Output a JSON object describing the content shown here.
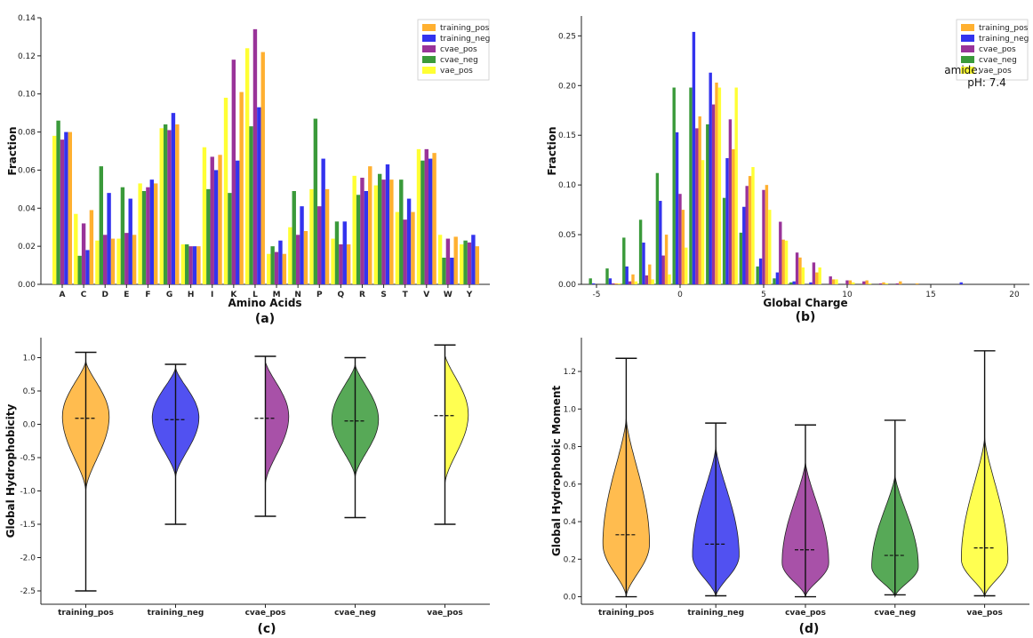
{
  "chart_data": [
    {
      "panel": "(a)",
      "type": "bar",
      "xlabel": "Amino Acids",
      "ylabel": "Fraction",
      "ylim": [
        0,
        0.14
      ],
      "yticks": [
        "0.00",
        "0.02",
        "0.04",
        "0.06",
        "0.08",
        "0.10",
        "0.12",
        "0.14"
      ],
      "legend_position": "top-right",
      "categories": [
        "A",
        "C",
        "D",
        "E",
        "F",
        "G",
        "H",
        "I",
        "K",
        "L",
        "M",
        "N",
        "P",
        "Q",
        "R",
        "S",
        "T",
        "V",
        "W",
        "Y"
      ],
      "series": [
        {
          "name": "vae_pos",
          "color": "#ffff33",
          "values": [
            0.078,
            0.037,
            0.023,
            0.024,
            0.053,
            0.082,
            0.021,
            0.072,
            0.098,
            0.124,
            0.016,
            0.03,
            0.05,
            0.024,
            0.057,
            0.052,
            0.038,
            0.071,
            0.026,
            0.021
          ]
        },
        {
          "name": "cvae_neg",
          "color": "#3a9a3a",
          "values": [
            0.086,
            0.015,
            0.062,
            0.051,
            0.049,
            0.084,
            0.021,
            0.05,
            0.048,
            0.083,
            0.02,
            0.049,
            0.087,
            0.033,
            0.047,
            0.058,
            0.055,
            0.065,
            0.014,
            0.023
          ]
        },
        {
          "name": "cvae_pos",
          "color": "#993399",
          "values": [
            0.076,
            0.032,
            0.026,
            0.027,
            0.051,
            0.081,
            0.02,
            0.067,
            0.118,
            0.134,
            0.017,
            0.026,
            0.041,
            0.021,
            0.056,
            0.055,
            0.034,
            0.071,
            0.024,
            0.022
          ]
        },
        {
          "name": "training_neg",
          "color": "#3333ee",
          "values": [
            0.08,
            0.018,
            0.048,
            0.045,
            0.055,
            0.09,
            0.02,
            0.06,
            0.065,
            0.093,
            0.023,
            0.041,
            0.066,
            0.033,
            0.049,
            0.063,
            0.045,
            0.066,
            0.014,
            0.026
          ]
        },
        {
          "name": "training_pos",
          "color": "#ffb030",
          "values": [
            0.08,
            0.039,
            0.024,
            0.026,
            0.053,
            0.084,
            0.02,
            0.068,
            0.101,
            0.122,
            0.016,
            0.028,
            0.05,
            0.021,
            0.062,
            0.055,
            0.038,
            0.069,
            0.025,
            0.02
          ]
        }
      ],
      "legend_order": [
        "training_pos",
        "training_neg",
        "cvae_pos",
        "cvae_neg",
        "vae_pos"
      ]
    },
    {
      "panel": "(b)",
      "type": "bar",
      "xlabel": "Global Charge",
      "ylabel": "Fraction",
      "xlim": [
        -6,
        21
      ],
      "ylim": [
        0,
        0.27
      ],
      "xticks": [
        "-5",
        "0",
        "5",
        "10",
        "15",
        "20"
      ],
      "yticks": [
        "0.00",
        "0.05",
        "0.10",
        "0.15",
        "0.20",
        "0.25"
      ],
      "legend_position": "top-right",
      "annotation": [
        "amide:",
        "pH:  7.4"
      ],
      "bin_centers": [
        -5,
        -4,
        -3,
        -2,
        -1,
        0,
        1,
        2,
        3,
        4,
        5,
        6,
        7,
        8,
        9,
        10,
        11,
        12,
        13,
        14,
        15,
        16,
        17
      ],
      "series": [
        {
          "name": "cvae_neg",
          "color": "#3a9a3a",
          "values": [
            0.006,
            0.016,
            0.047,
            0.065,
            0.112,
            0.198,
            0.198,
            0.161,
            0.087,
            0.052,
            0.018,
            0.006,
            0.002,
            0,
            0,
            0,
            0,
            0,
            0,
            0,
            0,
            0,
            0
          ]
        },
        {
          "name": "training_neg",
          "color": "#3333ee",
          "values": [
            0.001,
            0.006,
            0.018,
            0.042,
            0.084,
            0.153,
            0.254,
            0.213,
            0.127,
            0.078,
            0.026,
            0.012,
            0.003,
            0.002,
            0,
            0,
            0,
            0,
            0,
            0,
            0,
            0,
            0.002
          ]
        },
        {
          "name": "cvae_pos",
          "color": "#993399",
          "values": [
            0,
            0.001,
            0.003,
            0.009,
            0.029,
            0.091,
            0.157,
            0.181,
            0.166,
            0.099,
            0.095,
            0.063,
            0.032,
            0.022,
            0.008,
            0.004,
            0.003,
            0.001,
            0.001,
            0,
            0,
            0,
            0
          ]
        },
        {
          "name": "training_pos",
          "color": "#ffb030",
          "values": [
            0,
            0.001,
            0.01,
            0.02,
            0.05,
            0.075,
            0.169,
            0.203,
            0.136,
            0.109,
            0.1,
            0.045,
            0.027,
            0.012,
            0.005,
            0.004,
            0.004,
            0.002,
            0.003,
            0.001,
            0,
            0,
            0
          ]
        },
        {
          "name": "vae_pos",
          "color": "#ffff33",
          "values": [
            0,
            0.001,
            0.003,
            0.005,
            0.01,
            0.037,
            0.125,
            0.198,
            0.198,
            0.118,
            0.075,
            0.044,
            0.017,
            0.017,
            0.005,
            0.002,
            0.001,
            0.001,
            0,
            0,
            0,
            0,
            0
          ]
        }
      ],
      "legend_order": [
        "training_pos",
        "training_neg",
        "cvae_pos",
        "cvae_neg",
        "vae_pos"
      ]
    },
    {
      "panel": "(c)",
      "type": "violin",
      "ylabel": "Global Hydrophobicity",
      "ylim": [
        -2.7,
        1.3
      ],
      "yticks": [
        -2.5,
        -2.0,
        -1.5,
        -1.0,
        -0.5,
        0.0,
        0.5,
        1.0
      ],
      "categories": [
        "training_pos",
        "training_neg",
        "cvae_pos",
        "cvae_neg",
        "vae_pos"
      ],
      "series": [
        {
          "name": "training_pos",
          "color": "#ffb030",
          "min": -2.5,
          "max": 1.08,
          "mean": 0.09,
          "peak": 0.12,
          "top": 0.95,
          "bottom": -1.0
        },
        {
          "name": "training_neg",
          "color": "#3333ee",
          "min": -1.5,
          "max": 0.9,
          "mean": 0.07,
          "peak": 0.1,
          "top": 0.85,
          "bottom": -0.8
        },
        {
          "name": "cvae_pos",
          "color": "#993399",
          "min": -1.38,
          "max": 1.02,
          "mean": 0.09,
          "peak": 0.12,
          "top": 0.95,
          "bottom": -0.9
        },
        {
          "name": "cvae_neg",
          "color": "#3a9a3a",
          "min": -1.4,
          "max": 1.0,
          "mean": 0.05,
          "peak": 0.07,
          "top": 0.9,
          "bottom": -0.8
        },
        {
          "name": "vae_pos",
          "color": "#ffff33",
          "min": -1.5,
          "max": 1.19,
          "mean": 0.13,
          "peak": 0.15,
          "top": 1.05,
          "bottom": -0.9
        }
      ]
    },
    {
      "panel": "(d)",
      "type": "violin",
      "ylabel": "Global Hydrophobic Moment",
      "ylim": [
        -0.04,
        1.38
      ],
      "yticks": [
        0.0,
        0.2,
        0.4,
        0.6,
        0.8,
        1.0,
        1.2
      ],
      "categories": [
        "training_pos",
        "training_neg",
        "cvae_pos",
        "cvae_neg",
        "vae_pos"
      ],
      "series": [
        {
          "name": "training_pos",
          "color": "#ffb030",
          "min": 0.0,
          "max": 1.27,
          "mean": 0.33,
          "peak": 0.28,
          "top": 0.95,
          "bottom": 0.0
        },
        {
          "name": "training_neg",
          "color": "#3333ee",
          "min": 0.005,
          "max": 0.925,
          "mean": 0.28,
          "peak": 0.22,
          "top": 0.8,
          "bottom": 0.0
        },
        {
          "name": "cvae_pos",
          "color": "#993399",
          "min": 0.0,
          "max": 0.915,
          "mean": 0.25,
          "peak": 0.18,
          "top": 0.72,
          "bottom": 0.0
        },
        {
          "name": "cvae_neg",
          "color": "#3a9a3a",
          "min": 0.01,
          "max": 0.94,
          "mean": 0.22,
          "peak": 0.16,
          "top": 0.65,
          "bottom": 0.0
        },
        {
          "name": "vae_pos",
          "color": "#ffff33",
          "min": 0.005,
          "max": 1.31,
          "mean": 0.26,
          "peak": 0.2,
          "top": 0.85,
          "bottom": 0.0
        }
      ]
    }
  ]
}
